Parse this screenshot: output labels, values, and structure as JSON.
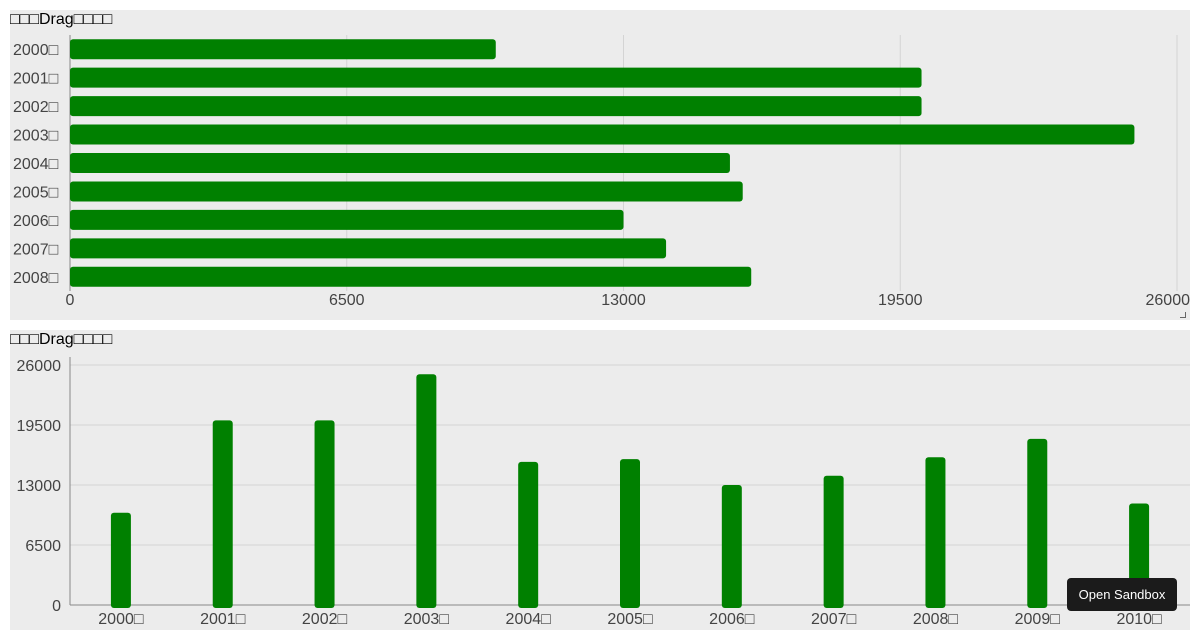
{
  "charts": {
    "top_title": "□□□Drag□□□□",
    "bottom_title": "□□□Drag□□□□"
  },
  "sandbox_button": {
    "label": "Open Sandbox"
  },
  "colors": {
    "bar": "#008000",
    "panel_background": "#ececec",
    "grid": "#d4d4d4",
    "axis_text": "#444444"
  },
  "chart_data": [
    {
      "type": "bar",
      "orientation": "horizontal",
      "title": "□□□Drag□□□□",
      "categories": [
        "2000□",
        "2001□",
        "2002□",
        "2003□",
        "2004□",
        "2005□",
        "2006□",
        "2007□",
        "2008□"
      ],
      "values": [
        10000,
        20000,
        20000,
        25000,
        15500,
        15800,
        13000,
        14000,
        16000
      ],
      "xlim": [
        0,
        26000
      ],
      "xticks": [
        "0",
        "6500",
        "13000",
        "19500",
        "26000"
      ],
      "grid": true
    },
    {
      "type": "bar",
      "orientation": "vertical",
      "title": "□□□Drag□□□□",
      "categories": [
        "2000□",
        "2001□",
        "2002□",
        "2003□",
        "2004□",
        "2005□",
        "2006□",
        "2007□",
        "2008□",
        "2009□",
        "2010□"
      ],
      "values": [
        10000,
        20000,
        20000,
        25000,
        15500,
        15800,
        13000,
        14000,
        16000,
        18000,
        11000
      ],
      "ylim": [
        0,
        26000
      ],
      "yticks": [
        "0",
        "6500",
        "13000",
        "19500",
        "26000"
      ],
      "grid": true
    }
  ]
}
